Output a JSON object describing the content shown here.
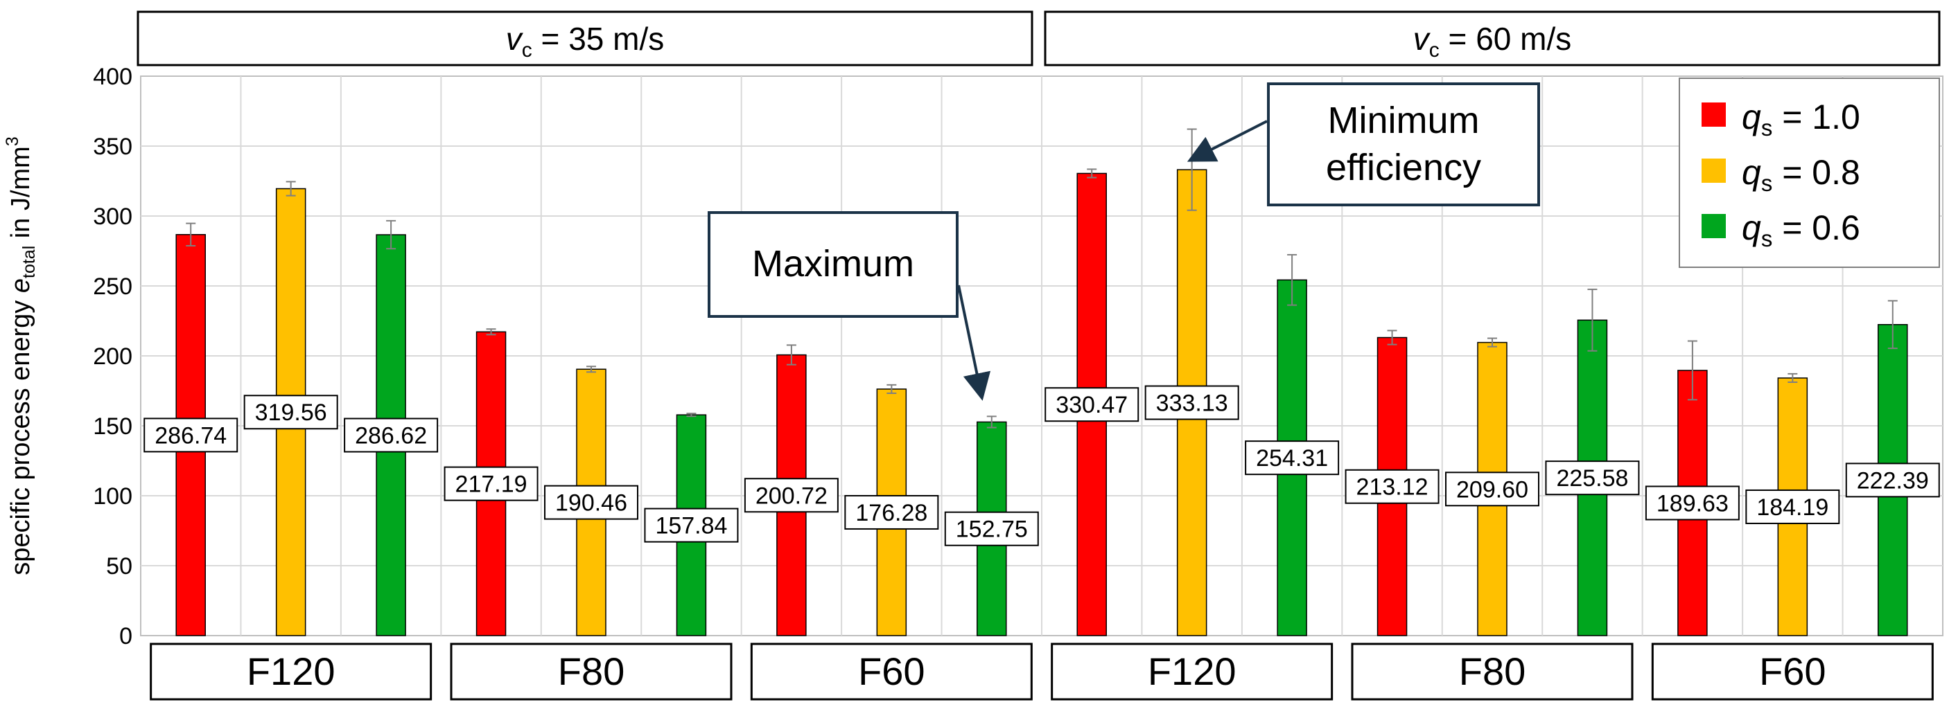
{
  "chart_data": {
    "type": "bar",
    "ylabel": {
      "main": "specific process energy ",
      "var": "e",
      "sub": "total",
      "rest": " in J/mm",
      "sup": "3"
    },
    "ylim": [
      0,
      400
    ],
    "yticks": [
      0,
      50,
      100,
      150,
      200,
      250,
      300,
      350,
      400
    ],
    "grid": true,
    "legend_position": "top-right",
    "panels": [
      {
        "var": "v",
        "sub": "c",
        "rest": " = 35 m/s"
      },
      {
        "var": "v",
        "sub": "c",
        "rest": " = 60 m/s"
      }
    ],
    "groups": [
      "F120",
      "F80",
      "F60",
      "F120",
      "F80",
      "F60"
    ],
    "series": [
      {
        "name": {
          "var": "q",
          "sub": "s",
          "rest": " = 1.0"
        },
        "color": "#ff0000",
        "values": [
          286.74,
          217.19,
          200.72,
          330.47,
          213.12,
          189.63
        ],
        "errors": [
          8,
          2,
          7,
          3,
          5,
          21
        ]
      },
      {
        "name": {
          "var": "q",
          "sub": "s",
          "rest": " = 0.8"
        },
        "color": "#ffc000",
        "values": [
          319.56,
          190.46,
          176.28,
          333.13,
          209.6,
          184.19
        ],
        "errors": [
          5,
          2,
          3,
          29,
          3,
          3
        ]
      },
      {
        "name": {
          "var": "q",
          "sub": "s",
          "rest": " = 0.6"
        },
        "color": "#00a61e",
        "values": [
          286.62,
          157.84,
          152.75,
          254.31,
          225.58,
          222.39
        ],
        "errors": [
          10,
          1,
          4,
          18,
          22,
          17
        ]
      }
    ],
    "data_labels": [
      [
        "286.74",
        "217.19",
        "200.72",
        "330.47",
        "213.12",
        "189.63"
      ],
      [
        "319.56",
        "190.46",
        "176.28",
        "333.13",
        "209.60",
        "184.19"
      ],
      [
        "286.62",
        "157.84",
        "152.75",
        "254.31",
        "225.58",
        "222.39"
      ]
    ],
    "annotations": [
      {
        "text": "Maximum",
        "group": 2,
        "series": 2
      },
      {
        "lines": [
          "Minimum",
          "efficiency"
        ],
        "group": 3,
        "series": 1
      }
    ]
  }
}
